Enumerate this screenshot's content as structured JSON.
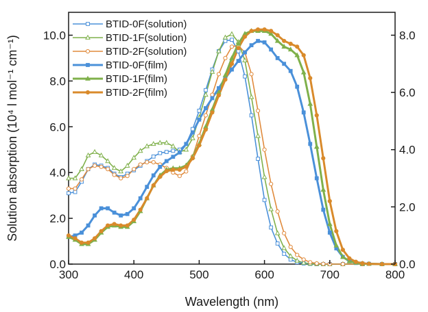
{
  "chart_data": {
    "type": "line",
    "title": "",
    "xlabel": "Wavelength (nm)",
    "ylabel_left": "Solution absorption (10⁴ l mol⁻¹ cm⁻¹)",
    "ylabel_right": "",
    "xlim": [
      300,
      800
    ],
    "ylim_left": [
      0,
      11
    ],
    "ylim_right": [
      0,
      8.8
    ],
    "xticks": [
      "300",
      "400",
      "500",
      "600",
      "700",
      "800"
    ],
    "yticks_left": [
      "0.0",
      "2.0",
      "4.0",
      "6.0",
      "8.0",
      "10.0"
    ],
    "yticks_right": [
      "0.0",
      "2.0",
      "4.0",
      "6.0",
      "8.0"
    ],
    "legend_position": "top-left",
    "grid": false,
    "series": [
      {
        "name": "BTID-0F(solution)",
        "axis": "left",
        "color": "#4a90d9",
        "marker": "open-square",
        "x": [
          300,
          310,
          320,
          330,
          340,
          350,
          360,
          370,
          380,
          390,
          400,
          410,
          420,
          430,
          440,
          450,
          460,
          470,
          480,
          490,
          500,
          510,
          520,
          530,
          540,
          550,
          560,
          570,
          580,
          590,
          600,
          610,
          620,
          630,
          640,
          650,
          660,
          670,
          680,
          690,
          700,
          720,
          750,
          800
        ],
        "y": [
          3.1,
          3.15,
          3.6,
          4.15,
          4.35,
          4.3,
          4.2,
          3.95,
          3.8,
          3.95,
          4.1,
          4.3,
          4.5,
          4.7,
          4.85,
          4.9,
          4.95,
          5.0,
          5.25,
          5.9,
          6.7,
          7.6,
          8.5,
          9.3,
          9.75,
          9.8,
          9.3,
          8.2,
          6.5,
          4.6,
          2.8,
          1.6,
          0.9,
          0.45,
          0.2,
          0.08,
          0.03,
          0.01,
          0.0,
          0.0,
          0.0,
          0.0,
          0.0,
          0.0
        ]
      },
      {
        "name": "BTID-1F(solution)",
        "axis": "left",
        "color": "#7fb04a",
        "marker": "open-triangle",
        "x": [
          300,
          310,
          320,
          330,
          340,
          350,
          360,
          370,
          380,
          390,
          400,
          410,
          420,
          430,
          440,
          450,
          460,
          470,
          480,
          490,
          500,
          510,
          520,
          530,
          540,
          550,
          560,
          570,
          580,
          590,
          600,
          610,
          620,
          630,
          640,
          650,
          660,
          670,
          680,
          690,
          700,
          720,
          750,
          800
        ],
        "y": [
          3.75,
          3.75,
          4.15,
          4.75,
          4.9,
          4.75,
          4.5,
          4.2,
          4.05,
          4.3,
          4.65,
          4.95,
          5.15,
          5.25,
          5.3,
          5.3,
          5.15,
          4.9,
          5.0,
          5.5,
          6.4,
          7.4,
          8.4,
          9.3,
          9.9,
          10.05,
          9.7,
          8.9,
          7.3,
          5.6,
          3.8,
          2.4,
          1.35,
          0.7,
          0.35,
          0.15,
          0.06,
          0.02,
          0.01,
          0.0,
          0.0,
          0.0,
          0.0,
          0.0
        ]
      },
      {
        "name": "BTID-2F(solution)",
        "axis": "left",
        "color": "#e08a3c",
        "marker": "open-circle",
        "x": [
          300,
          310,
          320,
          330,
          340,
          350,
          360,
          370,
          380,
          390,
          400,
          410,
          420,
          430,
          440,
          450,
          460,
          470,
          480,
          490,
          500,
          510,
          520,
          530,
          540,
          550,
          560,
          570,
          580,
          590,
          600,
          610,
          620,
          630,
          640,
          650,
          660,
          670,
          680,
          690,
          700,
          720,
          750,
          800
        ],
        "y": [
          3.3,
          3.3,
          3.7,
          4.15,
          4.3,
          4.25,
          4.15,
          3.9,
          3.75,
          3.85,
          4.15,
          4.35,
          4.45,
          4.45,
          4.35,
          4.2,
          4.0,
          3.85,
          4.05,
          4.7,
          5.6,
          6.5,
          7.4,
          8.3,
          9.0,
          9.5,
          9.55,
          9.25,
          8.3,
          6.7,
          5.0,
          3.5,
          2.3,
          1.35,
          0.75,
          0.4,
          0.2,
          0.08,
          0.03,
          0.01,
          0.0,
          0.0,
          0.0,
          0.0
        ]
      },
      {
        "name": "BTID-0F(film)",
        "axis": "right",
        "color": "#4a90d9",
        "marker": "filled-square",
        "x": [
          300,
          310,
          320,
          330,
          340,
          350,
          360,
          370,
          380,
          390,
          400,
          410,
          420,
          430,
          440,
          450,
          460,
          470,
          480,
          490,
          500,
          510,
          520,
          530,
          540,
          550,
          560,
          570,
          580,
          590,
          600,
          610,
          620,
          630,
          640,
          650,
          660,
          670,
          680,
          690,
          700,
          710,
          720,
          730,
          740,
          750,
          760,
          780,
          800
        ],
        "y": [
          0.95,
          1.0,
          1.1,
          1.35,
          1.7,
          1.95,
          1.95,
          1.8,
          1.7,
          1.75,
          1.95,
          2.3,
          2.7,
          3.1,
          3.4,
          3.6,
          3.75,
          3.9,
          4.2,
          4.6,
          5.05,
          5.45,
          5.8,
          6.15,
          6.5,
          6.8,
          7.1,
          7.4,
          7.65,
          7.8,
          7.75,
          7.5,
          7.2,
          7.0,
          6.75,
          6.2,
          5.3,
          4.2,
          3.0,
          1.9,
          1.1,
          0.55,
          0.25,
          0.1,
          0.04,
          0.02,
          0.01,
          0.0,
          0.0
        ]
      },
      {
        "name": "BTID-1F(film)",
        "axis": "right",
        "color": "#7fb04a",
        "marker": "filled-triangle",
        "x": [
          300,
          310,
          320,
          330,
          340,
          350,
          360,
          370,
          380,
          390,
          400,
          410,
          420,
          430,
          440,
          450,
          460,
          470,
          480,
          490,
          500,
          510,
          520,
          530,
          540,
          550,
          560,
          570,
          580,
          590,
          600,
          610,
          620,
          630,
          640,
          650,
          660,
          670,
          680,
          690,
          700,
          710,
          720,
          730,
          740,
          750,
          760,
          780,
          800
        ],
        "y": [
          0.95,
          0.85,
          0.7,
          0.7,
          0.85,
          1.1,
          1.3,
          1.35,
          1.3,
          1.3,
          1.5,
          1.85,
          2.3,
          2.75,
          3.1,
          3.3,
          3.35,
          3.35,
          3.45,
          3.75,
          4.2,
          4.8,
          5.4,
          6.0,
          6.6,
          7.2,
          7.7,
          8.05,
          8.15,
          8.15,
          8.15,
          8.05,
          7.8,
          7.6,
          7.5,
          7.3,
          6.7,
          5.6,
          4.1,
          2.6,
          1.4,
          0.65,
          0.25,
          0.1,
          0.05,
          0.02,
          0.01,
          0.0,
          0.0
        ]
      },
      {
        "name": "BTID-2F(film)",
        "axis": "right",
        "color": "#d98a2b",
        "marker": "filled-circle",
        "x": [
          300,
          310,
          320,
          330,
          340,
          350,
          360,
          370,
          380,
          390,
          400,
          410,
          420,
          430,
          440,
          450,
          460,
          470,
          480,
          490,
          500,
          510,
          520,
          530,
          540,
          550,
          560,
          570,
          580,
          590,
          600,
          610,
          620,
          630,
          640,
          650,
          660,
          670,
          680,
          690,
          700,
          710,
          720,
          730,
          740,
          750,
          760,
          780,
          800
        ],
        "y": [
          1.0,
          0.9,
          0.75,
          0.75,
          0.9,
          1.15,
          1.35,
          1.4,
          1.35,
          1.35,
          1.55,
          1.9,
          2.3,
          2.75,
          3.05,
          3.25,
          3.3,
          3.3,
          3.4,
          3.7,
          4.15,
          4.7,
          5.3,
          5.9,
          6.45,
          7.0,
          7.55,
          7.95,
          8.15,
          8.2,
          8.2,
          8.15,
          8.0,
          7.8,
          7.7,
          7.6,
          7.3,
          6.5,
          5.2,
          3.7,
          2.2,
          1.15,
          0.5,
          0.2,
          0.08,
          0.03,
          0.01,
          0.0,
          0.0
        ]
      }
    ]
  }
}
